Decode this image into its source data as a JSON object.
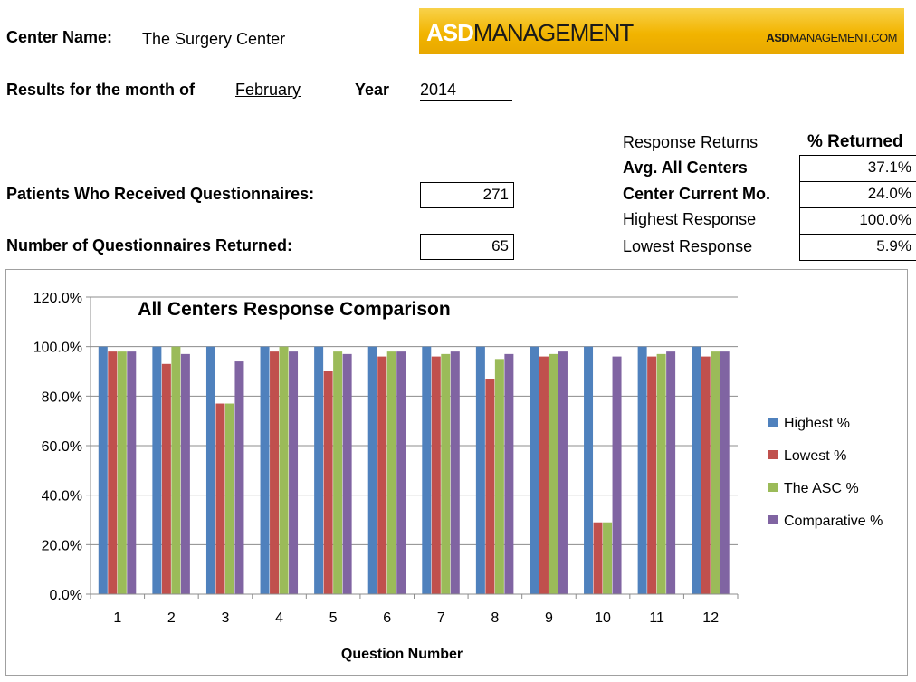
{
  "header": {
    "center_name_label": "Center Name:",
    "center_name_value": "The Surgery Center",
    "results_label": "Results for the month of",
    "month_value": "February",
    "year_label": "Year",
    "year_value": "2014"
  },
  "brand": {
    "logo_bold": "ASD",
    "logo_rest": "MANAGEMENT",
    "site_bold": "ASD",
    "site_rest": "MANAGEMENT.COM",
    "colors": {
      "banner": "#f2b400"
    }
  },
  "counts": {
    "received_label": "Patients Who Received Questionnaires:",
    "received_value": "271",
    "returned_label": "Number of Questionnaires Returned:",
    "returned_value": "65"
  },
  "returns": {
    "title": "Response Returns",
    "column_header": "% Returned",
    "rows": [
      {
        "label": "Avg. All Centers",
        "value": "37.1%"
      },
      {
        "label": "Center Current Mo.",
        "value": "24.0%"
      },
      {
        "label": "Highest Response",
        "value": "100.0%"
      },
      {
        "label": "Lowest Response",
        "value": "5.9%"
      }
    ]
  },
  "chart_data": {
    "type": "bar",
    "title": "All Centers Response Comparison",
    "xlabel": "Question Number",
    "ylabel": "",
    "ylim": [
      0,
      120
    ],
    "yticks": [
      "0.0%",
      "20.0%",
      "40.0%",
      "60.0%",
      "80.0%",
      "100.0%",
      "120.0%"
    ],
    "categories": [
      "1",
      "2",
      "3",
      "4",
      "5",
      "6",
      "7",
      "8",
      "9",
      "10",
      "11",
      "12"
    ],
    "legend_position": "right",
    "grid": true,
    "series": [
      {
        "name": "Highest %",
        "color": "#4f81bd",
        "values": [
          100,
          100,
          100,
          100,
          100,
          100,
          100,
          100,
          100,
          100,
          100,
          100
        ]
      },
      {
        "name": "Lowest %",
        "color": "#c0504d",
        "values": [
          98,
          93,
          77,
          98,
          90,
          96,
          96,
          87,
          96,
          29,
          96,
          96
        ]
      },
      {
        "name": "The ASC %",
        "color": "#9bbb59",
        "values": [
          98,
          100,
          77,
          100,
          98,
          98,
          97,
          95,
          97,
          29,
          97,
          98
        ]
      },
      {
        "name": "Comparative %",
        "color": "#8064a2",
        "values": [
          98,
          97,
          94,
          98,
          97,
          98,
          98,
          97,
          98,
          96,
          98,
          98
        ]
      }
    ]
  }
}
